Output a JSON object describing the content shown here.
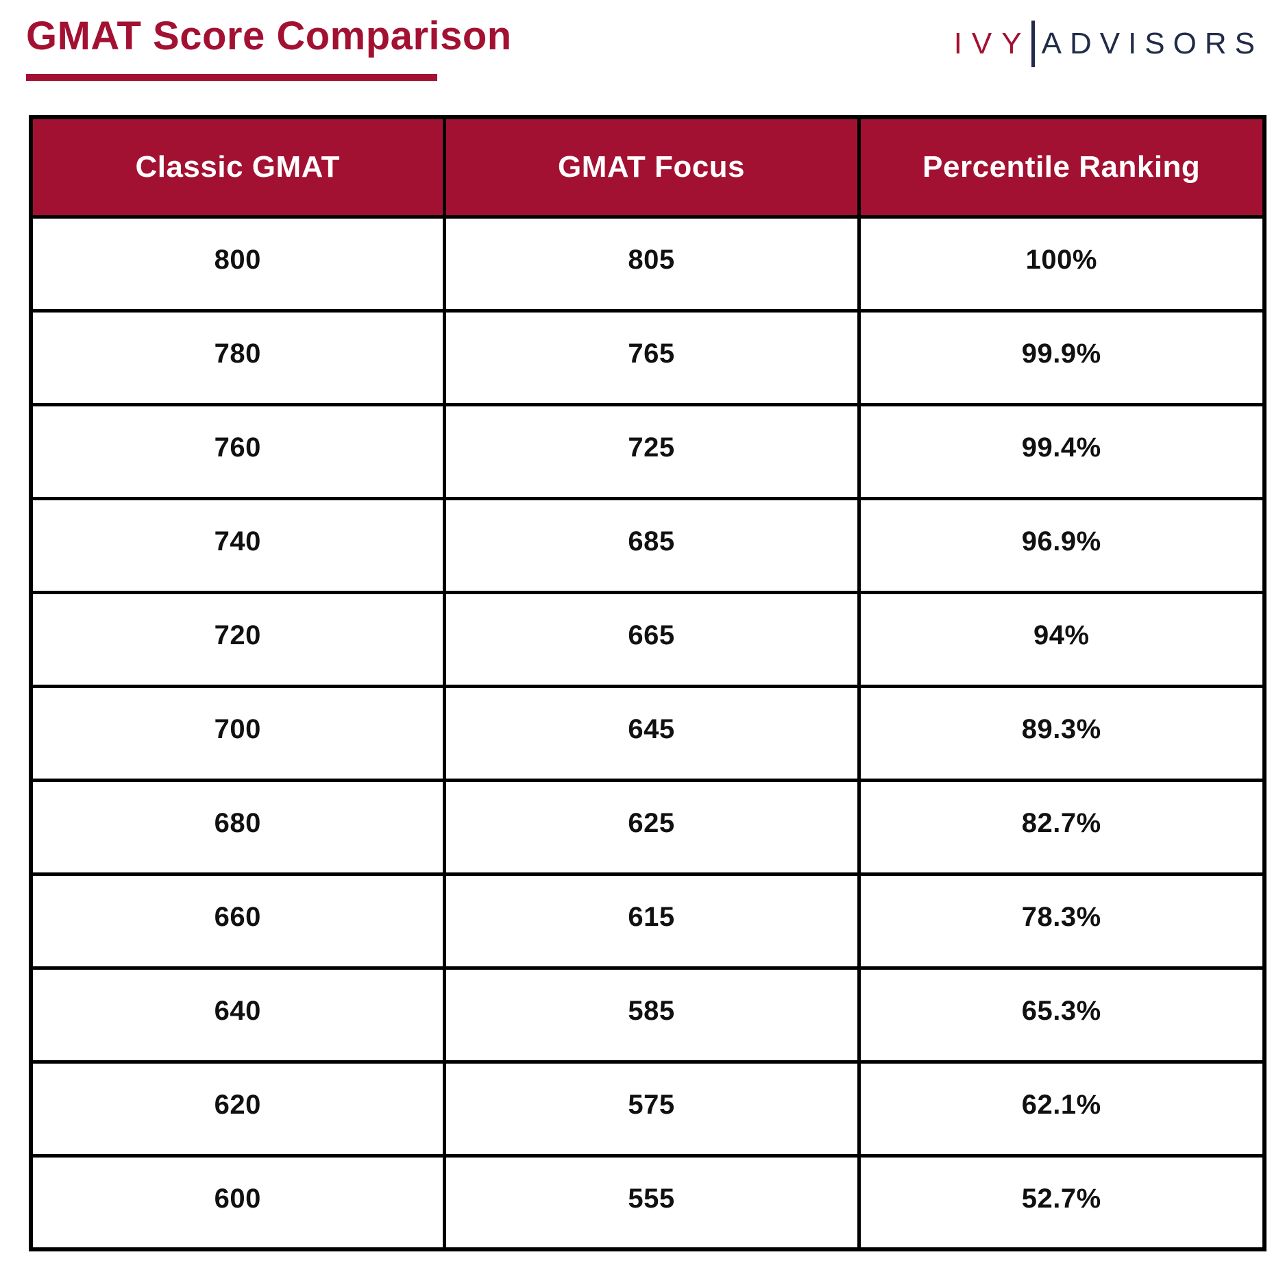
{
  "page": {
    "title": "GMAT Score Comparison"
  },
  "logo": {
    "left": "IVY",
    "right": "ADVISORS"
  },
  "colors": {
    "crimson": "#A31132",
    "navy": "#212B49",
    "border": "#000000",
    "header_text": "#FFFFFF",
    "cell_text": "#111111"
  },
  "chart_data": {
    "type": "table",
    "title": "GMAT Score Comparison",
    "columns": [
      "Classic GMAT",
      "GMAT Focus",
      "Percentile Ranking"
    ],
    "rows": [
      [
        "800",
        "805",
        "100%"
      ],
      [
        "780",
        "765",
        "99.9%"
      ],
      [
        "760",
        "725",
        "99.4%"
      ],
      [
        "740",
        "685",
        "96.9%"
      ],
      [
        "720",
        "665",
        "94%"
      ],
      [
        "700",
        "645",
        "89.3%"
      ],
      [
        "680",
        "625",
        "82.7%"
      ],
      [
        "660",
        "615",
        "78.3%"
      ],
      [
        "640",
        "585",
        "65.3%"
      ],
      [
        "620",
        "575",
        "62.1%"
      ],
      [
        "600",
        "555",
        "52.7%"
      ]
    ]
  }
}
